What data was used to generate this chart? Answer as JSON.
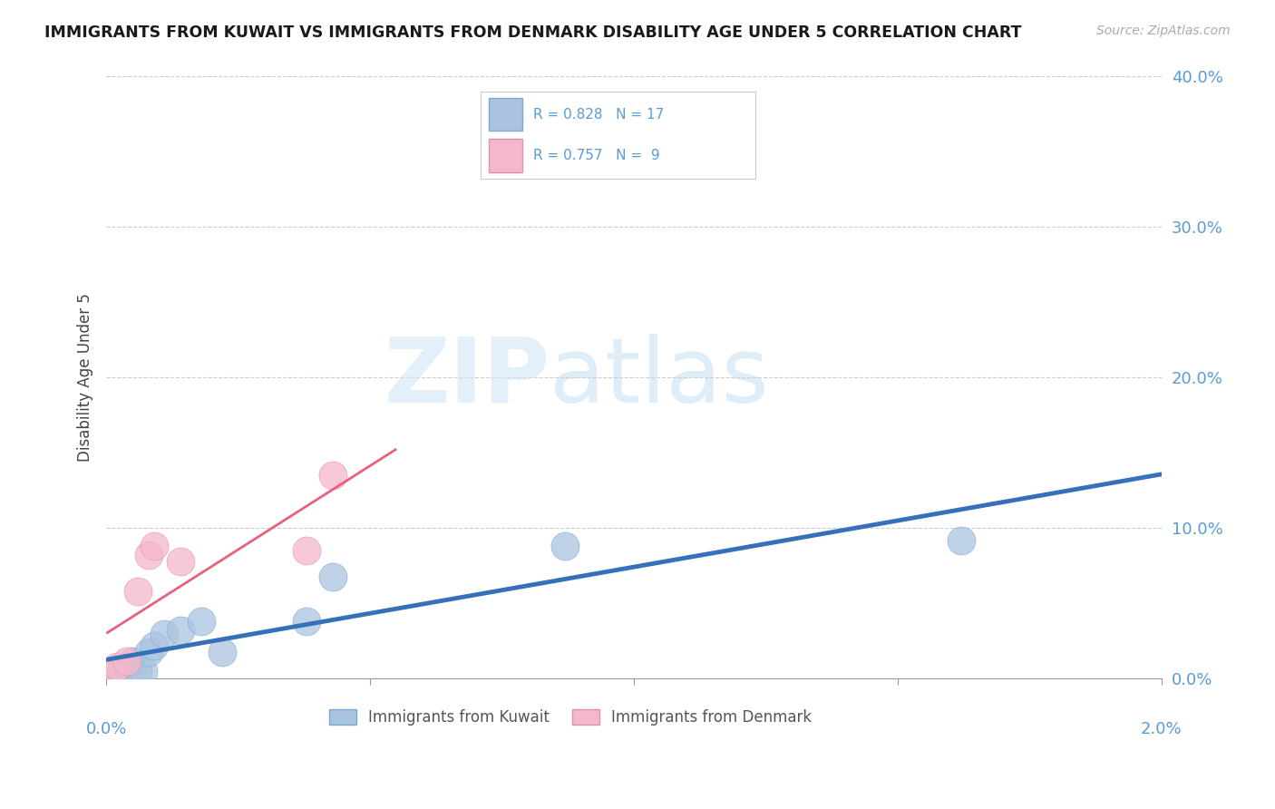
{
  "title": "IMMIGRANTS FROM KUWAIT VS IMMIGRANTS FROM DENMARK DISABILITY AGE UNDER 5 CORRELATION CHART",
  "source": "Source: ZipAtlas.com",
  "ylabel": "Disability Age Under 5",
  "xlim": [
    0.0,
    2.0
  ],
  "ylim": [
    0.0,
    40.0
  ],
  "yticks": [
    0.0,
    10.0,
    20.0,
    30.0,
    40.0
  ],
  "xticks": [
    0.0,
    0.5,
    1.0,
    1.5,
    2.0
  ],
  "kuwait_color": "#aac4e0",
  "denmark_color": "#f5b8cb",
  "kuwait_line_color": "#3570b8",
  "denmark_line_color": "#e8607a",
  "kuwait_R": 0.828,
  "kuwait_N": 17,
  "denmark_R": 0.757,
  "denmark_N": 9,
  "kuwait_scatter_x": [
    0.01,
    0.02,
    0.03,
    0.04,
    0.05,
    0.06,
    0.07,
    0.08,
    0.09,
    0.11,
    0.14,
    0.18,
    0.22,
    0.38,
    0.43,
    0.87,
    1.62
  ],
  "kuwait_scatter_y": [
    0.3,
    0.5,
    0.4,
    0.8,
    1.2,
    0.6,
    0.5,
    1.8,
    2.2,
    3.0,
    3.2,
    3.8,
    1.8,
    3.8,
    6.8,
    8.8,
    9.2
  ],
  "denmark_scatter_x": [
    0.01,
    0.02,
    0.04,
    0.06,
    0.08,
    0.09,
    0.14,
    0.38,
    0.43
  ],
  "denmark_scatter_y": [
    0.4,
    0.8,
    1.2,
    5.8,
    8.2,
    8.8,
    7.8,
    8.5,
    13.5
  ],
  "watermark_zip": "ZIP",
  "watermark_atlas": "atlas",
  "background_color": "#ffffff",
  "legend_kuwait": "Immigrants from Kuwait",
  "legend_denmark": "Immigrants from Denmark",
  "grid_color": "#cccccc",
  "axis_label_color": "#5b9bd5",
  "tick_color": "#999999"
}
